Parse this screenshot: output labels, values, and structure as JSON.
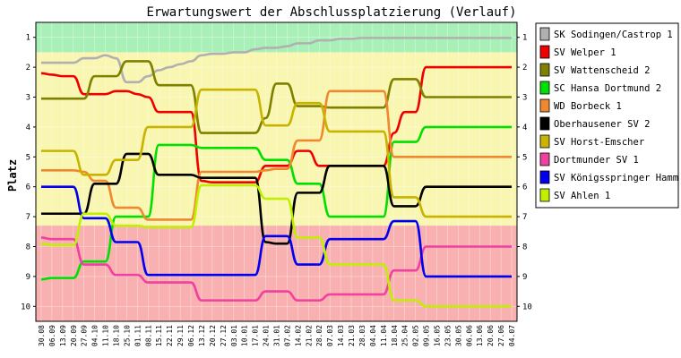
{
  "chart_data": {
    "type": "line",
    "title": "Erwartungswert der Abschlussplatzierung (Verlauf)",
    "ylabel": "Platz",
    "xlabel": "",
    "y_inverted": true,
    "ylim": [
      0.5,
      10.5
    ],
    "y_ticks": [
      1,
      2,
      3,
      4,
      5,
      6,
      7,
      8,
      9,
      10
    ],
    "x": [
      "30.08",
      "06.09",
      "13.09",
      "20.09",
      "27.09",
      "04.10",
      "11.10",
      "18.10",
      "25.10",
      "01.11",
      "08.11",
      "15.11",
      "22.11",
      "29.11",
      "06.12",
      "13.12",
      "20.12",
      "27.12",
      "03.01",
      "10.01",
      "17.01",
      "24.01",
      "31.01",
      "07.02",
      "14.02",
      "21.02",
      "28.02",
      "07.03",
      "14.03",
      "21.03",
      "28.03",
      "04.04",
      "11.04",
      "18.04",
      "25.04",
      "02.05",
      "09.05",
      "16.05",
      "23.05",
      "30.05",
      "06.06",
      "13.06",
      "20.06",
      "27.06",
      "04.07"
    ],
    "x_tick_labels_shown": [
      "30.08",
      "06.09",
      "13.09",
      "20.09",
      "27.09",
      "04.10",
      "11.10",
      "18.10",
      "25.10",
      "01.11",
      "08.11",
      "15.11",
      "22.11",
      "29.11",
      "06.12",
      "13.12",
      "20.12",
      "27.12",
      "03.01",
      "10.01",
      "17.01",
      "24.01",
      "31.01",
      "07.02",
      "14.02",
      "21.02",
      "28.02",
      "07.03",
      "14.03",
      "21.03",
      "28.03",
      "04.04",
      "11.04",
      "18.04",
      "25.04",
      "02.05",
      "09.05",
      "16.05",
      "23.05",
      "30.05",
      "06.06",
      "13.06",
      "20.06",
      "27.06",
      "04.07"
    ],
    "grid": true,
    "legend_position": "right",
    "zones": [
      {
        "name": "top",
        "color": "#a8f0b8",
        "from": 0.5,
        "to": 1.5
      },
      {
        "name": "middle",
        "color": "#f8f6b0",
        "from": 1.5,
        "to": 7.3
      },
      {
        "name": "bottom",
        "color": "#f8b0b0",
        "from": 7.3,
        "to": 10.5
      }
    ],
    "series": [
      {
        "name": "SK Sodingen/Castrop 1",
        "color": "#b0b0b0",
        "values": [
          1.85,
          1.85,
          1.85,
          1.85,
          1.7,
          1.7,
          1.6,
          1.7,
          2.5,
          2.5,
          2.3,
          2.1,
          2.0,
          1.9,
          1.8,
          1.6,
          1.55,
          1.55,
          1.5,
          1.5,
          1.4,
          1.35,
          1.35,
          1.3,
          1.2,
          1.2,
          1.1,
          1.1,
          1.05,
          1.05,
          1.02,
          1.02,
          1.02,
          1.02,
          1.02,
          1.02,
          1.02,
          1.02,
          1.02,
          1.02,
          1.02,
          1.02,
          1.02,
          1.02,
          1.02
        ]
      },
      {
        "name": "SV Welper 1",
        "color": "#ee0000",
        "values": [
          2.2,
          2.25,
          2.3,
          2.3,
          2.9,
          2.9,
          2.9,
          2.8,
          2.8,
          2.9,
          3.0,
          3.5,
          3.5,
          3.5,
          3.5,
          5.8,
          5.85,
          5.85,
          5.85,
          5.85,
          5.85,
          5.3,
          5.3,
          5.3,
          4.8,
          4.8,
          5.3,
          5.3,
          5.3,
          5.3,
          5.3,
          5.3,
          5.3,
          4.2,
          3.5,
          3.5,
          2.0,
          2.0,
          2.0,
          2.0,
          2.0,
          2.0,
          2.0,
          2.0,
          2.0
        ]
      },
      {
        "name": "SV Wattenscheid 2",
        "color": "#808000",
        "values": [
          3.05,
          3.05,
          3.05,
          3.05,
          3.05,
          2.3,
          2.3,
          2.3,
          1.8,
          1.8,
          1.8,
          2.6,
          2.6,
          2.6,
          2.6,
          4.2,
          4.2,
          4.2,
          4.2,
          4.2,
          4.2,
          3.7,
          2.55,
          2.55,
          3.3,
          3.3,
          3.3,
          3.35,
          3.35,
          3.35,
          3.35,
          3.35,
          3.35,
          2.4,
          2.4,
          2.4,
          3.0,
          3.0,
          3.0,
          3.0,
          3.0,
          3.0,
          3.0,
          3.0,
          3.0
        ]
      },
      {
        "name": "SC Hansa Dortmund 2",
        "color": "#00e000",
        "values": [
          9.1,
          9.05,
          9.05,
          9.05,
          8.5,
          8.5,
          8.5,
          7.0,
          7.0,
          7.0,
          7.0,
          4.6,
          4.6,
          4.6,
          4.6,
          4.7,
          4.7,
          4.7,
          4.7,
          4.7,
          4.7,
          5.1,
          5.1,
          5.1,
          5.9,
          5.9,
          5.9,
          7.0,
          7.0,
          7.0,
          7.0,
          7.0,
          7.0,
          4.5,
          4.5,
          4.5,
          4.0,
          4.0,
          4.0,
          4.0,
          4.0,
          4.0,
          4.0,
          4.0,
          4.0
        ]
      },
      {
        "name": "WD Borbeck 1",
        "color": "#f08830",
        "values": [
          5.45,
          5.45,
          5.45,
          5.45,
          5.5,
          5.8,
          5.8,
          6.7,
          6.7,
          6.7,
          7.1,
          7.1,
          7.1,
          7.1,
          7.1,
          5.5,
          5.5,
          5.5,
          5.5,
          5.5,
          5.5,
          5.45,
          5.4,
          5.4,
          4.45,
          4.45,
          4.45,
          2.8,
          2.8,
          2.8,
          2.8,
          2.8,
          2.8,
          5.0,
          5.0,
          5.0,
          5.0,
          5.0,
          5.0,
          5.0,
          5.0,
          5.0,
          5.0,
          5.0,
          5.0
        ]
      },
      {
        "name": "Oberhausener SV 2",
        "color": "#000000",
        "values": [
          6.9,
          6.9,
          6.9,
          6.9,
          6.9,
          5.9,
          5.9,
          5.9,
          4.9,
          4.9,
          4.9,
          5.6,
          5.6,
          5.6,
          5.6,
          5.7,
          5.7,
          5.7,
          5.7,
          5.7,
          5.7,
          7.85,
          7.9,
          7.9,
          6.2,
          6.2,
          6.2,
          5.3,
          5.3,
          5.3,
          5.3,
          5.3,
          5.3,
          6.65,
          6.65,
          6.65,
          6.0,
          6.0,
          6.0,
          6.0,
          6.0,
          6.0,
          6.0,
          6.0,
          6.0
        ]
      },
      {
        "name": "SV Horst-Emscher",
        "color": "#c8b400",
        "values": [
          4.8,
          4.8,
          4.8,
          4.8,
          5.6,
          5.6,
          5.6,
          5.1,
          5.1,
          5.1,
          4.0,
          4.0,
          4.0,
          4.0,
          4.0,
          2.75,
          2.75,
          2.75,
          2.75,
          2.75,
          2.75,
          3.95,
          3.95,
          3.95,
          3.2,
          3.2,
          3.2,
          4.15,
          4.15,
          4.15,
          4.15,
          4.15,
          4.15,
          6.35,
          6.35,
          6.35,
          7.0,
          7.0,
          7.0,
          7.0,
          7.0,
          7.0,
          7.0,
          7.0,
          7.0
        ]
      },
      {
        "name": "Dortmunder SV 1",
        "color": "#f040a0",
        "values": [
          7.7,
          7.75,
          7.75,
          7.75,
          8.6,
          8.6,
          8.6,
          8.95,
          8.95,
          8.95,
          9.2,
          9.2,
          9.2,
          9.2,
          9.2,
          9.8,
          9.8,
          9.8,
          9.8,
          9.8,
          9.8,
          9.5,
          9.5,
          9.5,
          9.8,
          9.8,
          9.8,
          9.6,
          9.6,
          9.6,
          9.6,
          9.6,
          9.6,
          8.8,
          8.8,
          8.8,
          8.0,
          8.0,
          8.0,
          8.0,
          8.0,
          8.0,
          8.0,
          8.0,
          8.0
        ]
      },
      {
        "name": "SV Königsspringer Hamm",
        "color": "#0000ee",
        "values": [
          6.0,
          6.0,
          6.0,
          6.0,
          7.05,
          7.05,
          7.05,
          7.85,
          7.85,
          7.85,
          8.95,
          8.95,
          8.95,
          8.95,
          8.95,
          8.95,
          8.95,
          8.95,
          8.95,
          8.95,
          8.95,
          7.65,
          7.65,
          7.65,
          8.6,
          8.6,
          8.6,
          7.75,
          7.75,
          7.75,
          7.75,
          7.75,
          7.75,
          7.15,
          7.15,
          7.15,
          9.0,
          9.0,
          9.0,
          9.0,
          9.0,
          9.0,
          9.0,
          9.0,
          9.0
        ]
      },
      {
        "name": "SV Ahlen 1",
        "color": "#c0f000",
        "values": [
          7.9,
          7.95,
          7.95,
          7.95,
          6.9,
          6.9,
          6.9,
          7.3,
          7.3,
          7.3,
          7.35,
          7.35,
          7.35,
          7.35,
          7.35,
          5.95,
          5.95,
          5.95,
          5.95,
          5.95,
          5.95,
          6.4,
          6.4,
          6.4,
          7.7,
          7.7,
          7.7,
          8.6,
          8.6,
          8.6,
          8.6,
          8.6,
          8.6,
          9.8,
          9.8,
          9.8,
          10.0,
          10.0,
          10.0,
          10.0,
          10.0,
          10.0,
          10.0,
          10.0,
          10.0
        ]
      }
    ]
  }
}
